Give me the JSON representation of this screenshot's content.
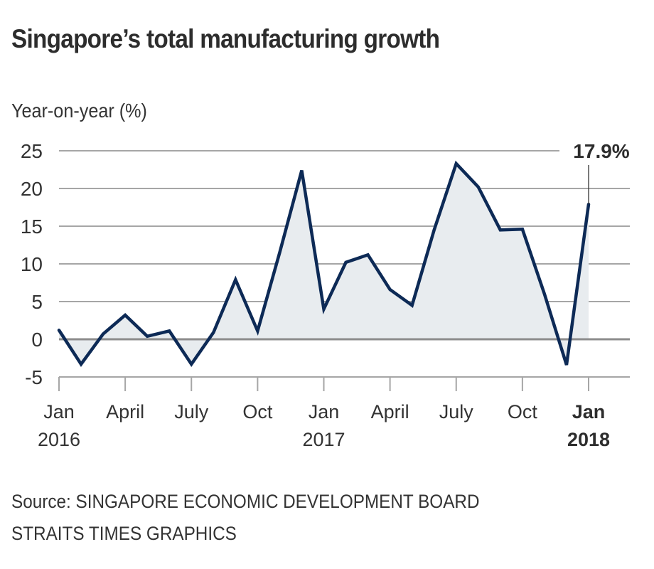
{
  "header": {
    "title": "Singapore’s total manufacturing growth",
    "ylabel": "Year-on-year (%)"
  },
  "footer": {
    "source": "Source: SINGAPORE ECONOMIC DEVELOPMENT BOARD",
    "credit": "STRAITS TIMES GRAPHICS"
  },
  "colors": {
    "line": "#0d2a56",
    "fill": "#e8ecef",
    "grid": "#a6a6a6",
    "zero": "#8c8c8c",
    "text": "#333333"
  },
  "chart_data": {
    "type": "area",
    "title": "Singapore’s total manufacturing growth",
    "ylabel": "Year-on-year (%)",
    "xlabel": "",
    "ylim": [
      -5,
      25
    ],
    "yticks": [
      25,
      20,
      15,
      10,
      5,
      0,
      -5
    ],
    "grid": true,
    "x": [
      "Jan 2016",
      "Feb 2016",
      "Mar 2016",
      "Apr 2016",
      "May 2016",
      "Jun 2016",
      "Jul 2016",
      "Aug 2016",
      "Sep 2016",
      "Oct 2016",
      "Nov 2016",
      "Dec 2016",
      "Jan 2017",
      "Feb 2017",
      "Mar 2017",
      "Apr 2017",
      "May 2017",
      "Jun 2017",
      "Jul 2017",
      "Aug 2017",
      "Sep 2017",
      "Oct 2017",
      "Nov 2017",
      "Dec 2017",
      "Jan 2018"
    ],
    "series": [
      {
        "name": "Total manufacturing growth (YoY %)",
        "values": [
          1.2,
          -3.3,
          0.7,
          3.2,
          0.4,
          1.1,
          -3.3,
          0.9,
          7.9,
          1.1,
          11.5,
          22.4,
          4.0,
          10.2,
          11.2,
          6.6,
          4.5,
          14.5,
          23.3,
          20.2,
          14.5,
          14.6,
          6.0,
          -3.4,
          17.9
        ]
      }
    ],
    "xticks": [
      {
        "index": 0,
        "line1": "Jan",
        "line2": "2016",
        "bold": false
      },
      {
        "index": 3,
        "line1": "April",
        "line2": "",
        "bold": false
      },
      {
        "index": 6,
        "line1": "July",
        "line2": "",
        "bold": false
      },
      {
        "index": 9,
        "line1": "Oct",
        "line2": "",
        "bold": false
      },
      {
        "index": 12,
        "line1": "Jan",
        "line2": "2017",
        "bold": false
      },
      {
        "index": 15,
        "line1": "April",
        "line2": "",
        "bold": false
      },
      {
        "index": 18,
        "line1": "July",
        "line2": "",
        "bold": false
      },
      {
        "index": 21,
        "line1": "Oct",
        "line2": "",
        "bold": false
      },
      {
        "index": 24,
        "line1": "Jan",
        "line2": "2018",
        "bold": true
      }
    ],
    "annotations": [
      {
        "index": 24,
        "value": 17.9,
        "text": "17.9%"
      }
    ]
  }
}
